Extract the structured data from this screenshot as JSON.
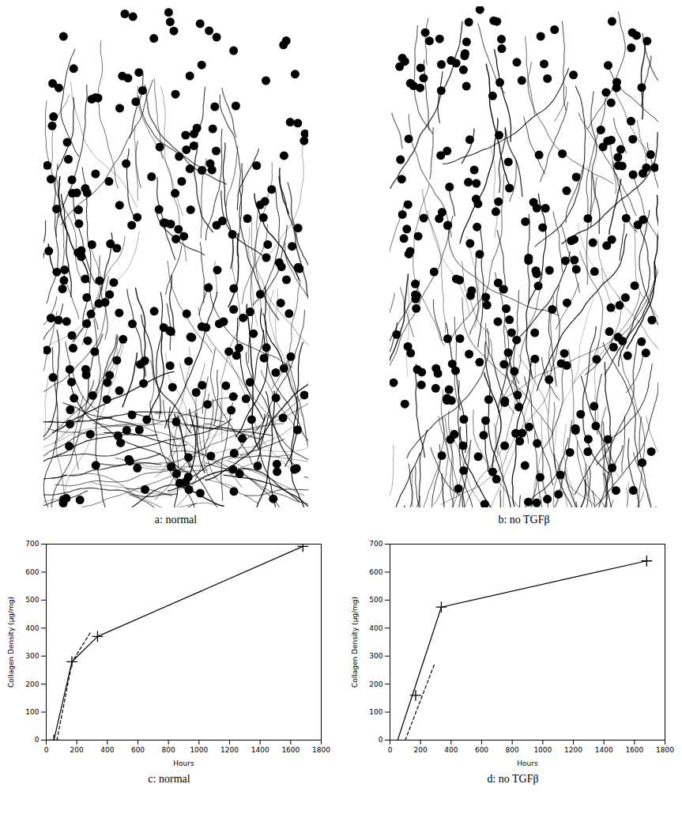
{
  "images": [
    {
      "caption": "a: normal"
    },
    {
      "caption": "b: no TGFβ"
    }
  ],
  "chart_data": [
    {
      "type": "line",
      "title": "c: normal",
      "x_label": "Hours",
      "y_label": "Collagen Density (μg/mg)",
      "xlim": [
        0,
        1800
      ],
      "xticks": [
        0,
        200,
        400,
        600,
        800,
        1000,
        1200,
        1400,
        1600,
        1800
      ],
      "ylim": [
        0,
        700
      ],
      "yticks": [
        0,
        100,
        200,
        300,
        400,
        500,
        600,
        700
      ],
      "series": [
        {
          "type": "line",
          "color": "#000000",
          "line_style": "solid",
          "marker": "plus",
          "x": [
            50,
            168,
            336,
            1680
          ],
          "values": [
            0,
            280,
            370,
            692
          ]
        },
        {
          "type": "line",
          "color": "#000000",
          "line_style": "dashed",
          "x": [
            70,
            170,
            290
          ],
          "values": [
            0,
            280,
            385
          ]
        }
      ]
    },
    {
      "type": "line",
      "title": "d: no TGFβ",
      "x_label": "Hours",
      "y_label": "Collagen Density (μg/mg)",
      "xlim": [
        0,
        1800
      ],
      "xticks": [
        0,
        200,
        400,
        600,
        800,
        1000,
        1200,
        1400,
        1600,
        1800
      ],
      "ylim": [
        0,
        700
      ],
      "yticks": [
        0,
        100,
        200,
        300,
        400,
        500,
        600,
        700
      ],
      "series": [
        {
          "type": "line",
          "color": "#000000",
          "line_style": "solid",
          "x": [
            50,
            336,
            1680
          ],
          "values": [
            0,
            475,
            640
          ]
        },
        {
          "type": "scatter",
          "color": "#000000",
          "marker": "plus",
          "x": [
            168,
            336,
            1680
          ],
          "values": [
            160,
            475,
            640
          ]
        },
        {
          "type": "line",
          "color": "#000000",
          "line_style": "dashed",
          "x": [
            100,
            170,
            290
          ],
          "values": [
            0,
            100,
            270
          ]
        }
      ]
    }
  ]
}
